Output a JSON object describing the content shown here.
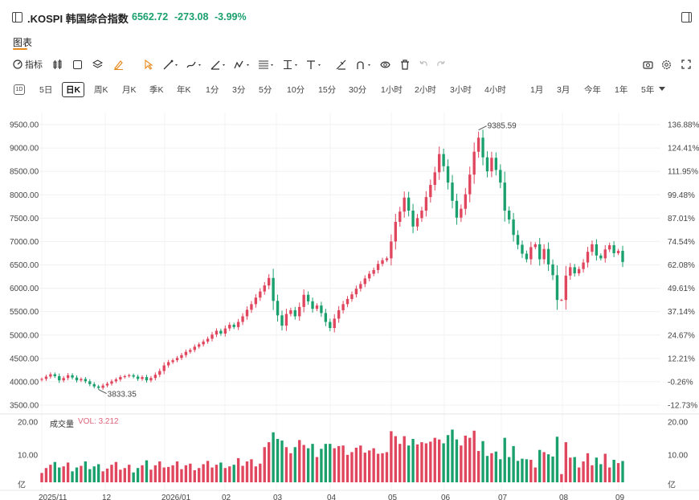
{
  "header": {
    "symbol": ".KOSPI",
    "name": "韩国综合指数",
    "price": "6562.72",
    "change": "-273.08",
    "change_pct": "-3.99%",
    "change_color": "#1aa06d"
  },
  "tabs": {
    "active": "图表"
  },
  "toolbar": {
    "indicators_label": "指标"
  },
  "periods": [
    "5日",
    "日K",
    "周K",
    "月K",
    "季K",
    "年K",
    "1分",
    "3分",
    "5分",
    "10分",
    "15分",
    "30分",
    "1小时",
    "2小时",
    "3小时",
    "4小时",
    "1月",
    "3月",
    "今年",
    "1年",
    "5年"
  ],
  "periods_active": "日K",
  "chart_data": {
    "type": "candlestick",
    "y_ticks": [
      "9500.00",
      "9000.00",
      "8500.00",
      "8000.00",
      "7500.00",
      "7000.00",
      "6500.00",
      "6000.00",
      "5500.00",
      "5000.00",
      "4500.00",
      "4000.00",
      "3500.00"
    ],
    "y_right_ticks": [
      "136.88%",
      "124.41%",
      "111.95%",
      "99.48%",
      "87.01%",
      "74.54%",
      "62.08%",
      "49.61%",
      "37.14%",
      "24.67%",
      "12.21%",
      "-0.26%",
      "-12.73%"
    ],
    "x_ticks": [
      "2025/11",
      "12",
      "2026/01",
      "02",
      "03",
      "04",
      "05",
      "06",
      "07",
      "08",
      "09"
    ],
    "high_annotation": "9385.59",
    "low_annotation": "3833.35",
    "up_color": "#e0465e",
    "down_color": "#1aa06d",
    "closes": [
      4060,
      4110,
      4160,
      4120,
      4030,
      4080,
      4140,
      4090,
      4030,
      4060,
      4010,
      3950,
      3900,
      3870,
      3920,
      3960,
      4010,
      4050,
      4100,
      4120,
      4140,
      4110,
      4060,
      4100,
      4030,
      4080,
      4150,
      4230,
      4350,
      4420,
      4460,
      4510,
      4570,
      4640,
      4680,
      4750,
      4800,
      4860,
      4920,
      5010,
      5090,
      5030,
      5140,
      5220,
      5170,
      5280,
      5400,
      5540,
      5660,
      5800,
      5930,
      6060,
      6220,
      5730,
      5420,
      5200,
      5450,
      5530,
      5400,
      5600,
      5860,
      5720,
      5560,
      5630,
      5470,
      5280,
      5150,
      5350,
      5530,
      5660,
      5770,
      5870,
      5990,
      6090,
      6210,
      6310,
      6390,
      6520,
      6600,
      6640,
      7000,
      7420,
      7640,
      7940,
      7660,
      7320,
      7500,
      7660,
      7950,
      8210,
      8480,
      8870,
      8610,
      8260,
      7870,
      7510,
      7700,
      8010,
      8430,
      8920,
      9220,
      8800,
      8500,
      8790,
      8530,
      8260,
      7660,
      7470,
      7140,
      6930,
      6740,
      6620,
      6880,
      6940,
      6620,
      6840,
      6510,
      6280,
      5750,
      5750,
      6270,
      6450,
      6320,
      6410,
      6550,
      6780,
      6940,
      6700,
      6640,
      6830,
      6920,
      6750,
      6800,
      6562
    ],
    "high": 9385.59,
    "low": 3833.35,
    "vol_ticks": [
      "20.00",
      "10.00",
      "亿"
    ],
    "vol_title": "成交量",
    "vol_value": "VOL: 3.212"
  }
}
